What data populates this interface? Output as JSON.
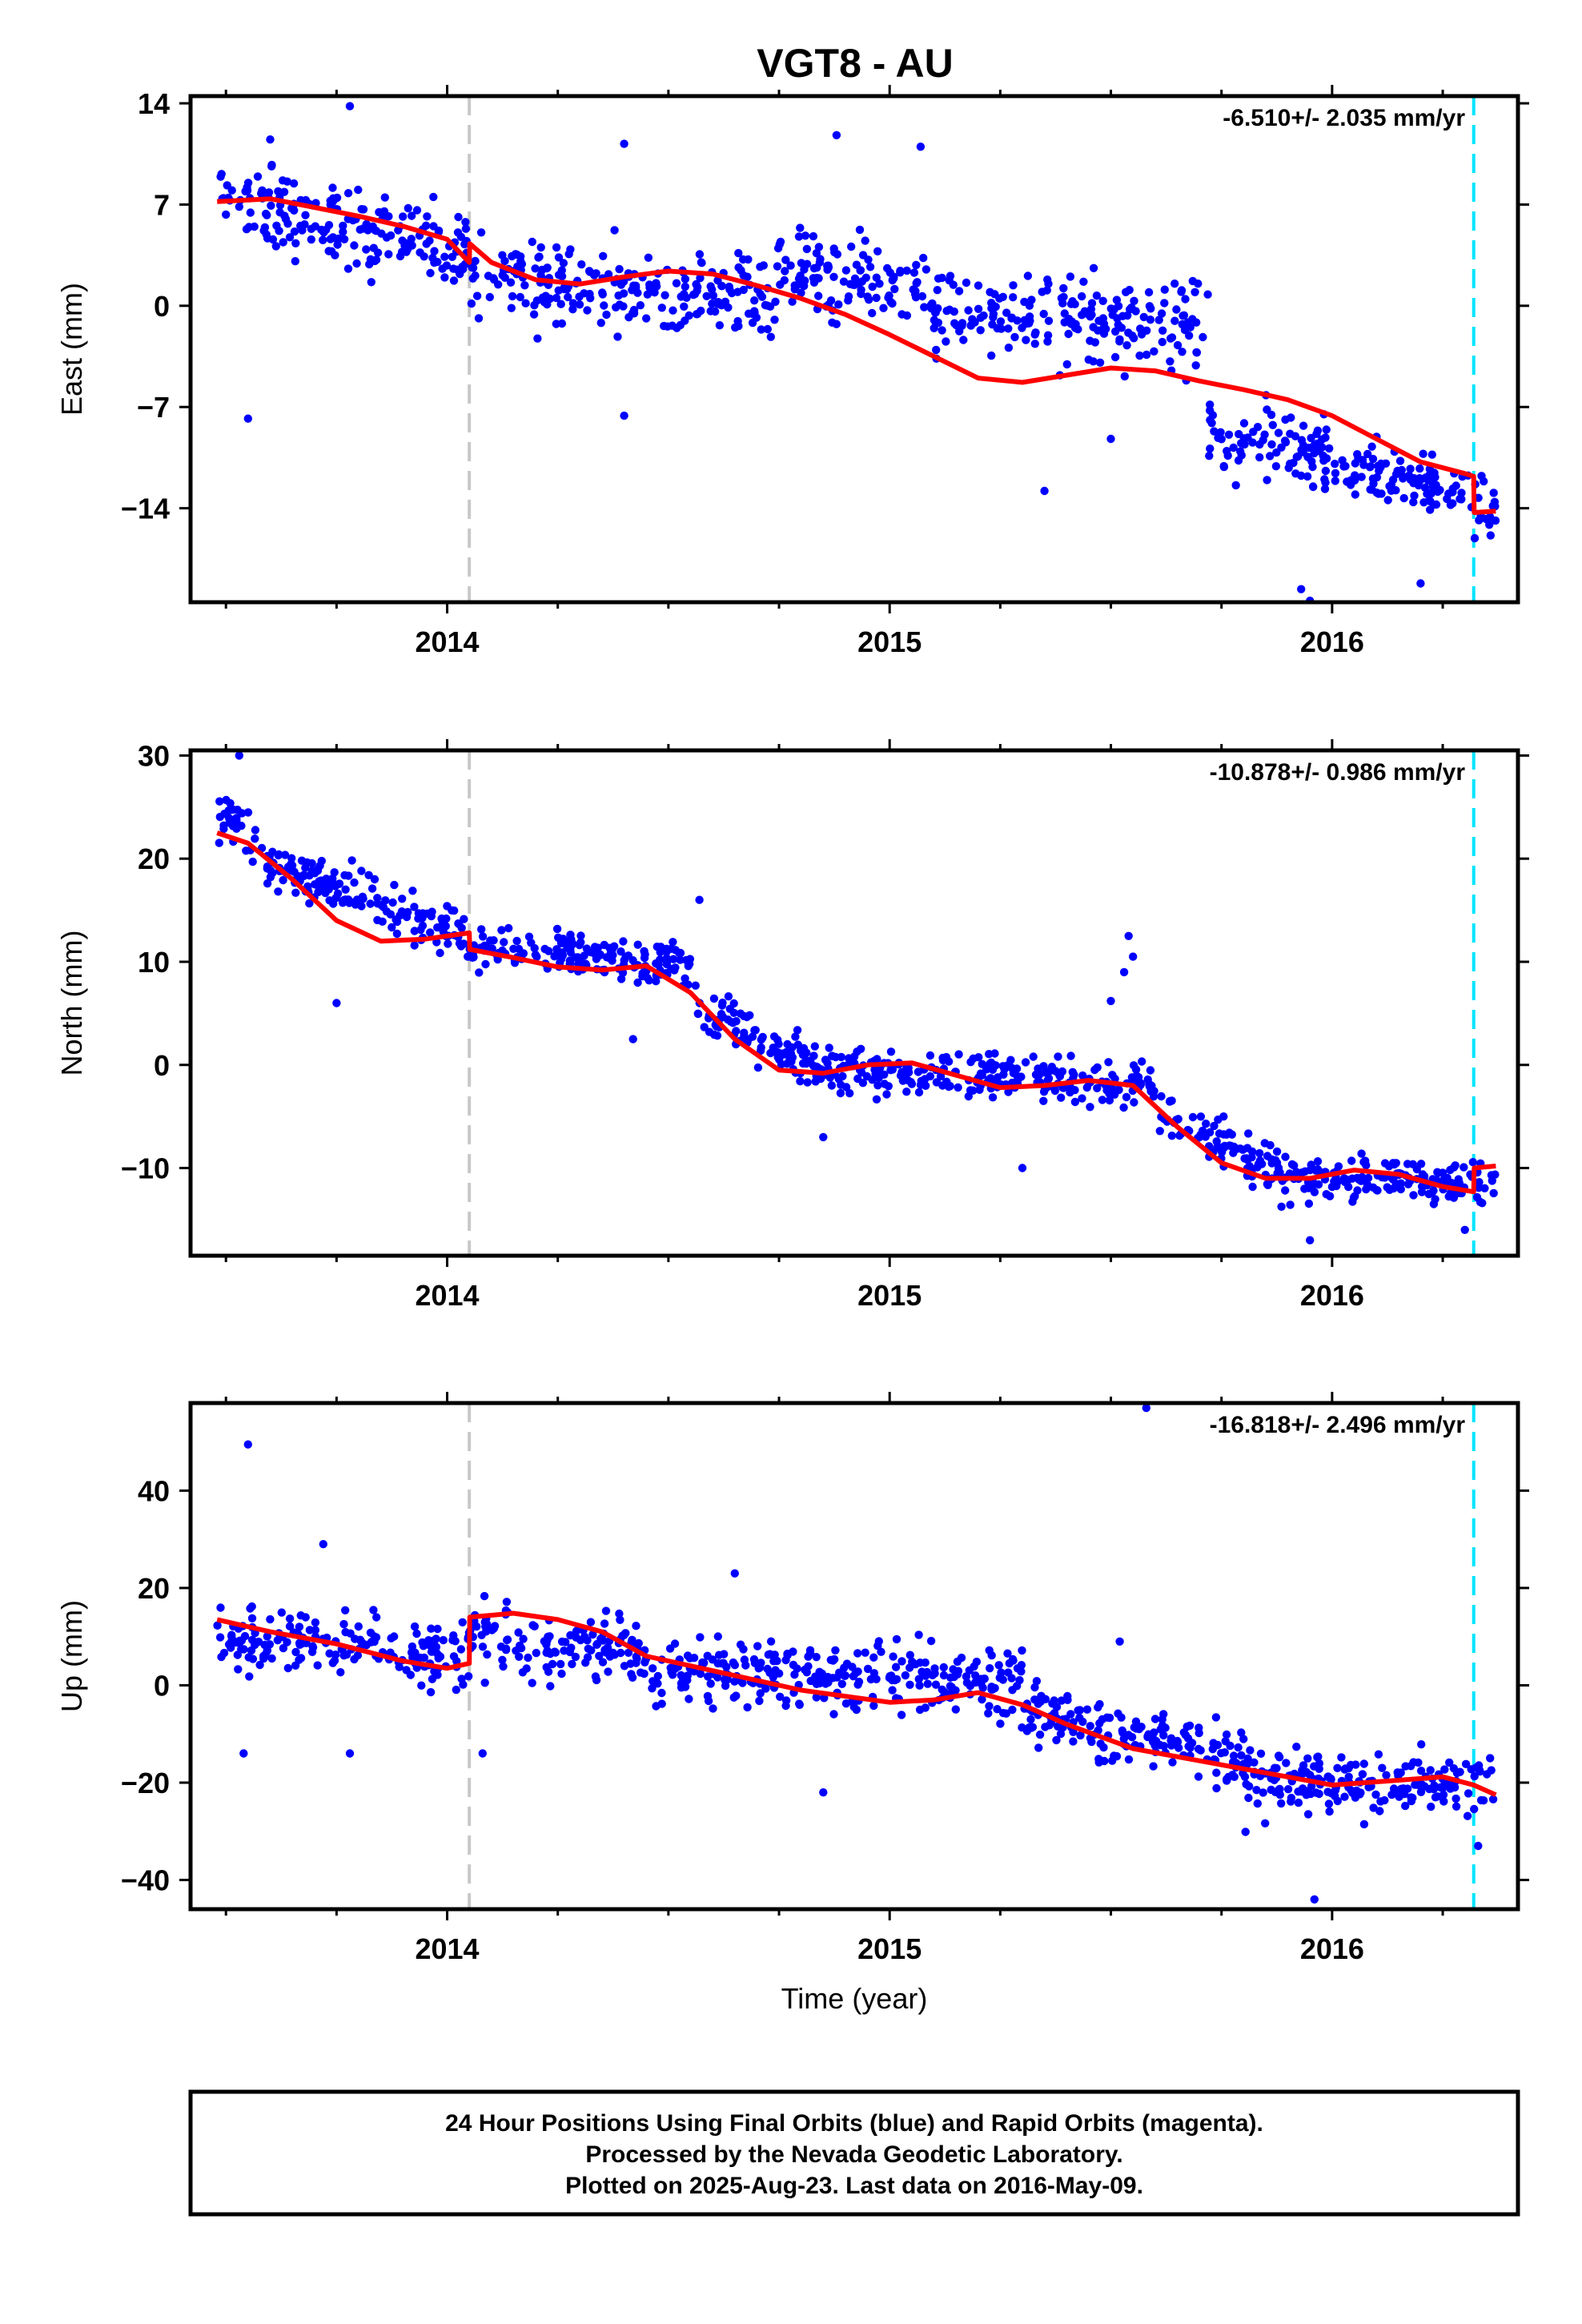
{
  "colors": {
    "data_points": "#0000ff",
    "model_line": "#ff0000",
    "gray_marker": "#c8c8c8",
    "cyan_marker": "#00e5ff",
    "frame": "#000000"
  },
  "chart_data": [
    {
      "type": "scatter",
      "title": "VGT8 - AU",
      "xlabel": "",
      "ylabel": "East (mm)",
      "xlim": [
        2013.42,
        2016.42
      ],
      "ylim": [
        -20.5,
        14.5
      ],
      "x_ticks": [
        2014,
        2015,
        2016
      ],
      "x_tick_labels": [
        "2014",
        "2015",
        "2016"
      ],
      "y_ticks": [
        14,
        7,
        0,
        -7,
        -14
      ],
      "y_tick_labels": [
        "14",
        "7",
        "0",
        "−7",
        "−14"
      ],
      "grid": false,
      "rate_label": "-6.510+/- 2.035 mm/yr",
      "vertical_markers": {
        "gray_dashed": 2014.05,
        "cyan_dashed": 2016.32
      },
      "model": {
        "x": [
          2013.48,
          2013.6,
          2013.7,
          2013.8,
          2013.9,
          2014.0,
          2014.05,
          2014.051,
          2014.1,
          2014.2,
          2014.3,
          2014.4,
          2014.5,
          2014.6,
          2014.7,
          2014.8,
          2014.9,
          2015.0,
          2015.1,
          2015.2,
          2015.3,
          2015.4,
          2015.5,
          2015.6,
          2015.7,
          2015.8,
          2015.9,
          2016.0,
          2016.1,
          2016.2,
          2016.3,
          2016.32,
          2016.321,
          2016.37
        ],
        "y": [
          7.2,
          7.4,
          6.8,
          6.2,
          5.5,
          4.6,
          3.0,
          4.3,
          3.0,
          1.8,
          1.5,
          2.0,
          2.4,
          2.2,
          1.4,
          0.5,
          -0.6,
          -2.0,
          -3.5,
          -5.0,
          -5.3,
          -4.8,
          -4.3,
          -4.5,
          -5.2,
          -5.8,
          -6.5,
          -7.6,
          -9.2,
          -10.8,
          -11.6,
          -11.8,
          -14.3,
          -14.2
        ]
      },
      "point_segments": [
        {
          "x0": 2013.48,
          "x1": 2014.05,
          "m0": 7.2,
          "m1": 3.6,
          "spread": 2.2
        },
        {
          "x0": 2014.05,
          "x1": 2014.75,
          "m0": 1.8,
          "m1": 0.9,
          "spread": 2.1
        },
        {
          "x0": 2014.75,
          "x1": 2015.1,
          "m0": 2.8,
          "m1": 0.9,
          "spread": 2.1
        },
        {
          "x0": 2015.1,
          "x1": 2015.72,
          "m0": -0.5,
          "m1": -1.2,
          "spread": 2.2
        },
        {
          "x0": 2015.72,
          "x1": 2016.0,
          "m0": -8.8,
          "m1": -10.5,
          "spread": 1.8
        },
        {
          "x0": 2016.0,
          "x1": 2016.37,
          "m0": -10.5,
          "m1": -14.2,
          "spread": 1.5
        }
      ],
      "outliers": [
        {
          "x": 2013.6,
          "y": 11.5
        },
        {
          "x": 2013.78,
          "y": 13.8
        },
        {
          "x": 2014.4,
          "y": 11.2
        },
        {
          "x": 2013.55,
          "y": -7.8
        },
        {
          "x": 2014.4,
          "y": -7.6
        },
        {
          "x": 2015.35,
          "y": -12.8
        },
        {
          "x": 2015.5,
          "y": -9.2
        },
        {
          "x": 2015.93,
          "y": -19.6
        },
        {
          "x": 2015.95,
          "y": -20.4
        },
        {
          "x": 2016.2,
          "y": -19.2
        },
        {
          "x": 2015.07,
          "y": 11.0
        },
        {
          "x": 2014.88,
          "y": 11.8
        }
      ]
    },
    {
      "type": "scatter",
      "title": "",
      "xlabel": "",
      "ylabel": "North (mm)",
      "xlim": [
        2013.42,
        2016.42
      ],
      "ylim": [
        -18.5,
        30.5
      ],
      "x_ticks": [
        2014,
        2015,
        2016
      ],
      "x_tick_labels": [
        "2014",
        "2015",
        "2016"
      ],
      "y_ticks": [
        30,
        20,
        10,
        0,
        -10
      ],
      "y_tick_labels": [
        "30",
        "20",
        "10",
        "0",
        "−10"
      ],
      "grid": false,
      "rate_label": "-10.878+/- 0.986 mm/yr",
      "vertical_markers": {
        "gray_dashed": 2014.05,
        "cyan_dashed": 2016.32
      },
      "model": {
        "x": [
          2013.48,
          2013.55,
          2013.65,
          2013.75,
          2013.85,
          2013.95,
          2014.05,
          2014.051,
          2014.15,
          2014.25,
          2014.35,
          2014.45,
          2014.55,
          2014.65,
          2014.75,
          2014.85,
          2014.95,
          2015.05,
          2015.15,
          2015.25,
          2015.35,
          2015.45,
          2015.55,
          2015.65,
          2015.75,
          2015.85,
          2015.95,
          2016.05,
          2016.15,
          2016.25,
          2016.32,
          2016.321,
          2016.37
        ],
        "y": [
          22.5,
          21.5,
          18.0,
          14.0,
          12.0,
          12.2,
          12.8,
          11.2,
          10.4,
          9.5,
          9.2,
          9.6,
          7.0,
          2.5,
          -0.5,
          -0.8,
          0.0,
          0.2,
          -1.0,
          -2.2,
          -2.0,
          -1.5,
          -2.0,
          -6.0,
          -9.5,
          -11.0,
          -11.0,
          -10.2,
          -10.6,
          -11.8,
          -12.3,
          -10.0,
          -9.8
        ]
      },
      "point_segments": [
        {
          "x0": 2013.48,
          "x1": 2013.57,
          "m0": 24.0,
          "m1": 22.0,
          "spread": 1.8
        },
        {
          "x0": 2013.57,
          "x1": 2014.05,
          "m0": 20.0,
          "m1": 12.2,
          "spread": 1.6
        },
        {
          "x0": 2014.05,
          "x1": 2014.55,
          "m0": 11.3,
          "m1": 9.5,
          "spread": 1.4
        },
        {
          "x0": 2014.55,
          "x1": 2014.85,
          "m0": 6.0,
          "m1": -0.5,
          "spread": 1.8
        },
        {
          "x0": 2014.85,
          "x1": 2015.6,
          "m0": -0.5,
          "m1": -2.0,
          "spread": 1.5
        },
        {
          "x0": 2015.6,
          "x1": 2015.9,
          "m0": -4.5,
          "m1": -10.8,
          "spread": 1.6
        },
        {
          "x0": 2015.9,
          "x1": 2016.37,
          "m0": -10.8,
          "m1": -11.5,
          "spread": 1.4
        }
      ],
      "outliers": [
        {
          "x": 2013.53,
          "y": 30.0
        },
        {
          "x": 2013.75,
          "y": 6.0
        },
        {
          "x": 2014.57,
          "y": 16.0
        },
        {
          "x": 2014.42,
          "y": 2.5
        },
        {
          "x": 2015.54,
          "y": 12.5
        },
        {
          "x": 2015.55,
          "y": 10.5
        },
        {
          "x": 2015.53,
          "y": 9.0
        },
        {
          "x": 2015.5,
          "y": 6.2
        },
        {
          "x": 2015.3,
          "y": -10.0
        },
        {
          "x": 2015.95,
          "y": -17.0
        },
        {
          "x": 2016.3,
          "y": -16.0
        },
        {
          "x": 2014.85,
          "y": -7.0
        }
      ]
    },
    {
      "type": "scatter",
      "title": "",
      "xlabel": "Time (year)",
      "ylabel": "Up (mm)",
      "xlim": [
        2013.42,
        2016.42
      ],
      "ylim": [
        -46,
        58
      ],
      "x_ticks": [
        2014,
        2015,
        2016
      ],
      "x_tick_labels": [
        "2014",
        "2015",
        "2016"
      ],
      "y_ticks": [
        40,
        20,
        0,
        -20,
        -40
      ],
      "y_tick_labels": [
        "40",
        "20",
        "0",
        "−20",
        "−40"
      ],
      "grid": false,
      "rate_label": "-16.818+/- 2.496 mm/yr",
      "vertical_markers": {
        "gray_dashed": 2014.05,
        "cyan_dashed": 2016.32
      },
      "model": {
        "x": [
          2013.48,
          2013.6,
          2013.75,
          2013.9,
          2014.0,
          2014.05,
          2014.051,
          2014.15,
          2014.25,
          2014.35,
          2014.45,
          2014.6,
          2014.8,
          2015.0,
          2015.1,
          2015.2,
          2015.3,
          2015.4,
          2015.55,
          2015.7,
          2015.85,
          2016.0,
          2016.15,
          2016.25,
          2016.32,
          2016.37
        ],
        "y": [
          13.5,
          11.0,
          8.5,
          5.0,
          3.5,
          4.5,
          14.0,
          14.8,
          13.5,
          11.0,
          6.0,
          3.0,
          -1.0,
          -3.5,
          -3.0,
          -1.5,
          -4.0,
          -8.0,
          -13.0,
          -15.5,
          -18.0,
          -20.5,
          -19.5,
          -18.8,
          -20.5,
          -22.5
        ]
      },
      "point_segments": [
        {
          "x0": 2013.48,
          "x1": 2014.05,
          "m0": 9.0,
          "m1": 6.5,
          "spread": 4.8
        },
        {
          "x0": 2014.05,
          "x1": 2014.45,
          "m0": 10.5,
          "m1": 6.0,
          "spread": 5.0
        },
        {
          "x0": 2014.45,
          "x1": 2015.3,
          "m0": 3.5,
          "m1": 0.0,
          "spread": 5.2
        },
        {
          "x0": 2015.3,
          "x1": 2015.8,
          "m0": -5.0,
          "m1": -15.0,
          "spread": 5.0
        },
        {
          "x0": 2015.8,
          "x1": 2016.37,
          "m0": -19.5,
          "m1": -21.0,
          "spread": 5.0
        }
      ],
      "outliers": [
        {
          "x": 2013.55,
          "y": 49.5
        },
        {
          "x": 2013.72,
          "y": 29.0
        },
        {
          "x": 2015.58,
          "y": 57.0
        },
        {
          "x": 2013.54,
          "y": -14.0
        },
        {
          "x": 2013.78,
          "y": -14.0
        },
        {
          "x": 2014.08,
          "y": -14.0
        },
        {
          "x": 2014.65,
          "y": 23.0
        },
        {
          "x": 2014.85,
          "y": -22.0
        },
        {
          "x": 2015.96,
          "y": -44.0
        },
        {
          "x": 2016.33,
          "y": -33.0
        },
        {
          "x": 2015.52,
          "y": 9.0
        }
      ]
    }
  ],
  "footer": {
    "line1": "24 Hour Positions Using Final Orbits (blue) and Rapid Orbits (magenta).",
    "line2": "Processed by the Nevada Geodetic Laboratory.",
    "line3": "Plotted on 2025-Aug-23. Last data on 2016-May-09."
  }
}
